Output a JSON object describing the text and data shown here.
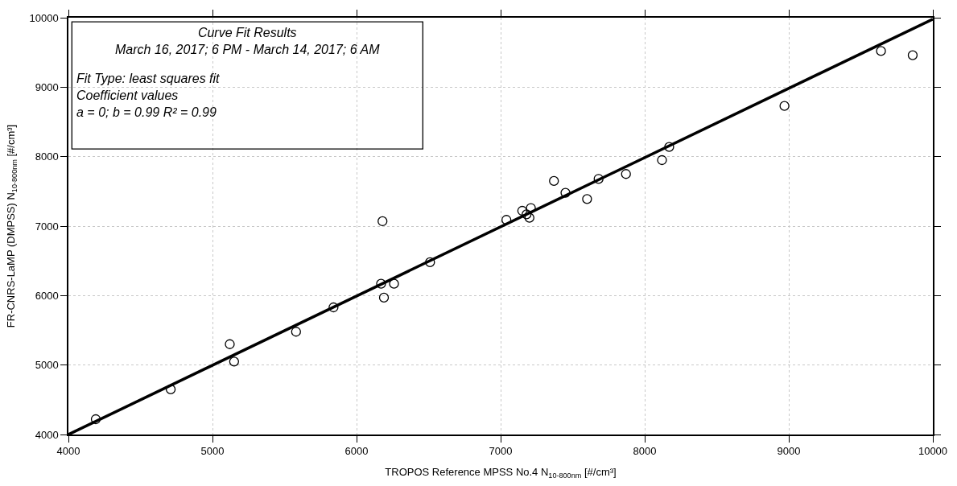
{
  "chart_data": {
    "type": "scatter",
    "xlabel": "TROPOS Reference MPSS No.4 N$_{10-800nm}$ [#/cm³]",
    "ylabel": "FR-CNRS-LaMP (DMPSS) N$_{10-800nm}$ [#/cm³]",
    "annotations": [
      "Curve Fit Results\nMarch 16, 2017; 6 PM - March 14, 2017; 6 AM",
      "Fit Type: least squares fit\nCoefficient values\na = 0; b = 0.99 R² = 0.99"
    ],
    "series": [
      {
        "color": "#000000",
        "marker": "circle",
        "x": [
          4190,
          4710,
          5120,
          5150,
          5580,
          5840,
          6180,
          6170,
          6260,
          6190,
          6510,
          7040,
          7150,
          7180,
          7210,
          7200,
          7370,
          7450,
          7600,
          7680,
          7870,
          8120,
          8170,
          8970,
          9640,
          9860
        ],
        "values": [
          4220,
          4650,
          5300,
          5050,
          5480,
          5830,
          7070,
          6170,
          6170,
          5970,
          6480,
          7090,
          7220,
          7170,
          7260,
          7120,
          7650,
          7480,
          7390,
          7680,
          7750,
          7950,
          8140,
          8730,
          9520,
          9460
        ]
      },
      {
        "type": "line",
        "color": "#000000",
        "marker": "none",
        "line_style": "solid",
        "x": [
          4000,
          10000
        ],
        "values": [
          4000,
          9980
        ]
      }
    ],
    "xlim": [
      4000,
      10000
    ],
    "xticks": [
      4000,
      5000,
      6000,
      7000,
      8000,
      9000,
      10000
    ],
    "ylim": [
      4000,
      10000
    ],
    "yticks": [
      4000,
      5000,
      6000,
      7000,
      8000,
      9000,
      10000
    ],
    "grid": true
  }
}
